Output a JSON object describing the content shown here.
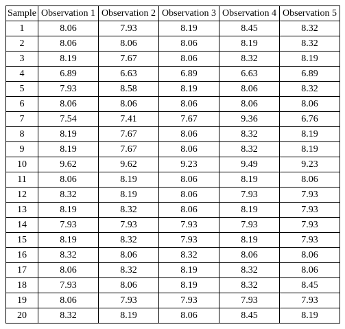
{
  "table": {
    "headers": [
      "Sample",
      "Observation 1",
      "Observation 2",
      "Observation 3",
      "Observation 4",
      "Observation 5"
    ],
    "rows": [
      [
        "1",
        "8.06",
        "7.93",
        "8.19",
        "8.45",
        "8.32"
      ],
      [
        "2",
        "8.06",
        "8.06",
        "8.06",
        "8.19",
        "8.32"
      ],
      [
        "3",
        "8.19",
        "7.67",
        "8.06",
        "8.32",
        "8.19"
      ],
      [
        "4",
        "6.89",
        "6.63",
        "6.89",
        "6.63",
        "6.89"
      ],
      [
        "5",
        "7.93",
        "8.58",
        "8.19",
        "8.06",
        "8.32"
      ],
      [
        "6",
        "8.06",
        "8.06",
        "8.06",
        "8.06",
        "8.06"
      ],
      [
        "7",
        "7.54",
        "7.41",
        "7.67",
        "9.36",
        "6.76"
      ],
      [
        "8",
        "8.19",
        "7.67",
        "8.06",
        "8.32",
        "8.19"
      ],
      [
        "9",
        "8.19",
        "7.67",
        "8.06",
        "8.32",
        "8.19"
      ],
      [
        "10",
        "9.62",
        "9.62",
        "9.23",
        "9.49",
        "9.23"
      ],
      [
        "11",
        "8.06",
        "8.19",
        "8.06",
        "8.19",
        "8.06"
      ],
      [
        "12",
        "8.32",
        "8.19",
        "8.06",
        "7.93",
        "7.93"
      ],
      [
        "13",
        "8.19",
        "8.32",
        "8.06",
        "8.19",
        "7.93"
      ],
      [
        "14",
        "7.93",
        "7.93",
        "7.93",
        "7.93",
        "7.93"
      ],
      [
        "15",
        "8.19",
        "8.32",
        "7.93",
        "8.19",
        "7.93"
      ],
      [
        "16",
        "8.32",
        "8.06",
        "8.32",
        "8.06",
        "8.06"
      ],
      [
        "17",
        "8.06",
        "8.32",
        "8.19",
        "8.32",
        "8.06"
      ],
      [
        "18",
        "7.93",
        "8.06",
        "8.19",
        "8.32",
        "8.45"
      ],
      [
        "19",
        "8.06",
        "7.93",
        "7.93",
        "7.93",
        "7.93"
      ],
      [
        "20",
        "8.32",
        "8.19",
        "8.06",
        "8.45",
        "8.19"
      ]
    ]
  }
}
